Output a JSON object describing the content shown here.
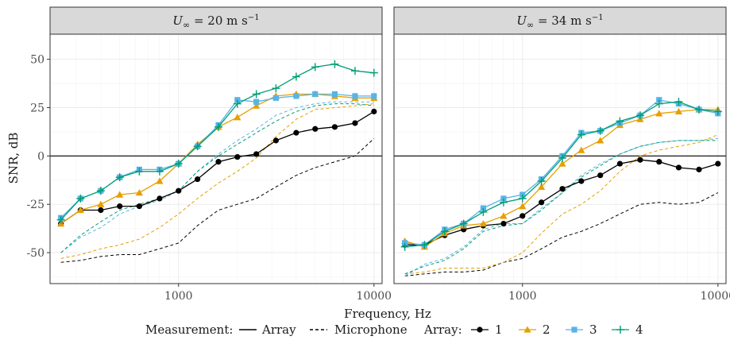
{
  "chart_data": {
    "type": "line",
    "x_scale": "log",
    "xlim": [
      220,
      11000
    ],
    "ylim": [
      -66,
      63
    ],
    "x_ticks": [
      1000,
      10000
    ],
    "x_tick_labels": [
      "1000",
      "10000"
    ],
    "y_ticks": [
      -50,
      -25,
      0,
      25,
      50
    ],
    "y_tick_labels": [
      "-50",
      "-25",
      "0",
      "25",
      "50"
    ],
    "xlabel": "Frequency, Hz",
    "ylabel": "SNR, dB",
    "grid": true,
    "legend_position": "bottom",
    "legend": {
      "measurement_title": "Measurement:",
      "measurement_entries": [
        {
          "label": "Array",
          "dash": "solid"
        },
        {
          "label": "Microphone",
          "dash": "dashed"
        }
      ],
      "array_title": "Array:",
      "array_entries": [
        {
          "label": "1",
          "color": "#000000",
          "marker": "circle"
        },
        {
          "label": "2",
          "color": "#E69F00",
          "marker": "triangle"
        },
        {
          "label": "3",
          "color": "#56B4E9",
          "marker": "square"
        },
        {
          "label": "4",
          "color": "#009E73",
          "marker": "plus"
        }
      ]
    },
    "x": [
      250,
      315,
      400,
      500,
      630,
      800,
      1000,
      1250,
      1600,
      2000,
      2500,
      3150,
      4000,
      5000,
      6300,
      8000,
      10000
    ],
    "panels": [
      {
        "title_main": "U",
        "title_sub": "∞",
        "title_rest": " = 20 m s",
        "title_sup": "−1",
        "series": [
          {
            "array": "1",
            "measurement": "Array",
            "values": [
              -35,
              -28,
              -28,
              -26,
              -26,
              -22,
              -18,
              -12,
              -3,
              -0.5,
              1,
              8,
              12,
              14,
              15,
              17,
              23
            ]
          },
          {
            "array": "2",
            "measurement": "Array",
            "values": [
              -35,
              -28,
              -25,
              -20,
              -19,
              -13,
              -4,
              6,
              15,
              20,
              26,
              31,
              32,
              32,
              31,
              30,
              30
            ]
          },
          {
            "array": "3",
            "measurement": "Array",
            "values": [
              -32,
              -22,
              -18,
              -11,
              -7,
              -7,
              -4,
              5,
              16,
              29,
              28,
              30,
              31,
              32,
              32,
              31,
              31
            ]
          },
          {
            "array": "4",
            "measurement": "Array",
            "values": [
              -33,
              -22,
              -18,
              -11,
              -8,
              -8,
              -4,
              5,
              15,
              27,
              32,
              35,
              41,
              46,
              47.5,
              44,
              43
            ]
          },
          {
            "array": "1",
            "measurement": "Microphone",
            "values": [
              -55,
              -54,
              -52,
              -51,
              -51,
              -48,
              -45,
              -36,
              -28,
              -25,
              -22,
              -16,
              -10,
              -6,
              -3,
              0,
              9
            ]
          },
          {
            "array": "2",
            "measurement": "Microphone",
            "values": [
              -53,
              -51,
              -48,
              -46,
              -43,
              -37,
              -30,
              -22,
              -14,
              -8,
              -1,
              10,
              19,
              24,
              25,
              26,
              27
            ]
          },
          {
            "array": "3",
            "measurement": "Microphone",
            "values": [
              -50,
              -42,
              -37,
              -30,
              -26,
              -23,
              -18,
              -8,
              1,
              8,
              14,
              21,
              25,
              27,
              28,
              28,
              28
            ]
          },
          {
            "array": "4",
            "measurement": "Microphone",
            "values": [
              -50,
              -41,
              -34,
              -28,
              -25,
              -22,
              -18,
              -8,
              0,
              6,
              12,
              18,
              23,
              26,
              27,
              27,
              26
            ]
          }
        ]
      },
      {
        "title_main": "U",
        "title_sub": "∞",
        "title_rest": " = 34 m s",
        "title_sup": "−1",
        "series": [
          {
            "array": "1",
            "measurement": "Array",
            "values": [
              -46,
              -46,
              -41,
              -38,
              -36,
              -35,
              -31,
              -24,
              -17,
              -13,
              -10,
              -4,
              -2,
              -3,
              -6,
              -7,
              -4
            ]
          },
          {
            "array": "2",
            "measurement": "Array",
            "values": [
              -44,
              -47,
              -40,
              -36,
              -35,
              -31,
              -26,
              -16,
              -4,
              3,
              8,
              16,
              19,
              22,
              23,
              24,
              24
            ]
          },
          {
            "array": "3",
            "measurement": "Array",
            "values": [
              -45,
              -46,
              -38,
              -35,
              -27,
              -22,
              -20,
              -12,
              0,
              12,
              13,
              17,
              21,
              29,
              27,
              24,
              22
            ]
          },
          {
            "array": "4",
            "measurement": "Array",
            "values": [
              -47,
              -46,
              -39,
              -35,
              -29,
              -24,
              -22,
              -13,
              -1,
              11,
              13,
              18,
              21,
              27,
              28,
              24,
              23
            ]
          },
          {
            "array": "1",
            "measurement": "Microphone",
            "values": [
              -62,
              -61,
              -60,
              -60,
              -59,
              -55,
              -53,
              -48,
              -42,
              -39,
              -35,
              -30,
              -25,
              -24,
              -25,
              -24,
              -19
            ]
          },
          {
            "array": "2",
            "measurement": "Microphone",
            "values": [
              -61,
              -60,
              -58,
              -58,
              -58,
              -55,
              -50,
              -40,
              -30,
              -25,
              -18,
              -8,
              0,
              3,
              5,
              7,
              11
            ]
          },
          {
            "array": "3",
            "measurement": "Microphone",
            "values": [
              -62,
              -56,
              -53,
              -47,
              -38,
              -35,
              -35,
              -27,
              -19,
              -10,
              -4,
              1,
              5,
              7,
              8,
              8,
              9
            ]
          },
          {
            "array": "4",
            "measurement": "Microphone",
            "values": [
              -61,
              -57,
              -54,
              -48,
              -39,
              -36,
              -35,
              -28,
              -19,
              -11,
              -5,
              1,
              5,
              7,
              8,
              8,
              8
            ]
          }
        ]
      }
    ]
  }
}
